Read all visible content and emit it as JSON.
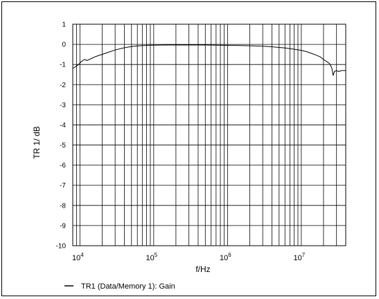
{
  "chart_data": {
    "type": "line",
    "xlabel": "f/Hz",
    "ylabel": "TR 1/ dB",
    "xscale": "log",
    "xlim": [
      8000,
      40000000
    ],
    "ylim": [
      -10,
      1
    ],
    "y_ticks": [
      1,
      0,
      -1,
      -2,
      -3,
      -4,
      -5,
      -6,
      -7,
      -8,
      -9,
      -10
    ],
    "x_tick_labels": [
      {
        "base": "10",
        "exp": "4",
        "value": 10000
      },
      {
        "base": "10",
        "exp": "5",
        "value": 100000
      },
      {
        "base": "10",
        "exp": "6",
        "value": 1000000
      },
      {
        "base": "10",
        "exp": "7",
        "value": 10000000
      }
    ],
    "grid": true,
    "legend_position": "bottom-left",
    "line_color": "#000000",
    "series": [
      {
        "name": "TR1 (Data/Memory 1): Gain",
        "x": [
          8000,
          8800,
          9600,
          10500,
          11500,
          12500,
          14000,
          16000,
          18000,
          20000,
          25000,
          30000,
          40000,
          50000,
          60000,
          80000,
          100000,
          150000,
          200000,
          300000,
          500000,
          700000,
          1000000,
          1500000,
          2000000,
          3000000,
          4000000,
          5000000,
          6000000,
          8000000,
          10000000,
          12000000,
          15000000,
          18000000,
          20000000,
          22000000,
          24000000,
          25000000,
          26000000,
          27000000,
          28000000,
          30000000,
          32000000,
          35000000,
          40000000
        ],
        "y": [
          -1.2,
          -1.1,
          -1.0,
          -0.85,
          -0.75,
          -0.8,
          -0.72,
          -0.62,
          -0.55,
          -0.5,
          -0.38,
          -0.28,
          -0.17,
          -0.11,
          -0.08,
          -0.05,
          -0.04,
          -0.03,
          -0.03,
          -0.03,
          -0.03,
          -0.04,
          -0.05,
          -0.06,
          -0.07,
          -0.09,
          -0.12,
          -0.15,
          -0.18,
          -0.24,
          -0.3,
          -0.37,
          -0.5,
          -0.62,
          -0.75,
          -0.85,
          -0.95,
          -1.05,
          -1.2,
          -1.55,
          -1.35,
          -1.3,
          -1.35,
          -1.3,
          -1.3
        ]
      }
    ]
  }
}
